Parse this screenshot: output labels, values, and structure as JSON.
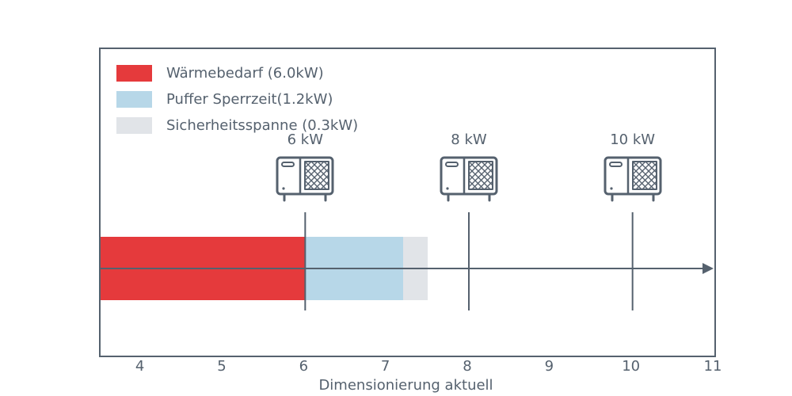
{
  "chart_data": {
    "type": "bar",
    "orientation": "horizontal",
    "title": "",
    "xlabel": "Dimensionierung aktuell",
    "xlim": [
      3.5,
      11
    ],
    "xticks": [
      "4",
      "5",
      "6",
      "7",
      "8",
      "9",
      "10",
      "11"
    ],
    "xtick_values": [
      4,
      5,
      6,
      7,
      8,
      9,
      10,
      11
    ],
    "grid": false,
    "legend_position": "upper-left-inside",
    "axis_color": "#55616e",
    "segments": [
      {
        "name": "Wärmebedarf (6.0kW)",
        "value": 6.0,
        "start": 3.5,
        "end": 6.0,
        "color": "#e53a3c"
      },
      {
        "name": "Puffer Sperrzeit(1.2kW)",
        "value": 1.2,
        "start": 6.0,
        "end": 7.2,
        "color": "#b7d7e8"
      },
      {
        "name": "Sicherheitsspanne (0.3kW)",
        "value": 0.3,
        "start": 7.2,
        "end": 7.5,
        "color": "#e1e4e8"
      }
    ],
    "markers": [
      {
        "label": "6 kW",
        "x": 6,
        "icon": "heat-pump-icon"
      },
      {
        "label": "8 kW",
        "x": 8,
        "icon": "heat-pump-icon"
      },
      {
        "label": "10 kW",
        "x": 10,
        "icon": "heat-pump-icon"
      }
    ]
  }
}
